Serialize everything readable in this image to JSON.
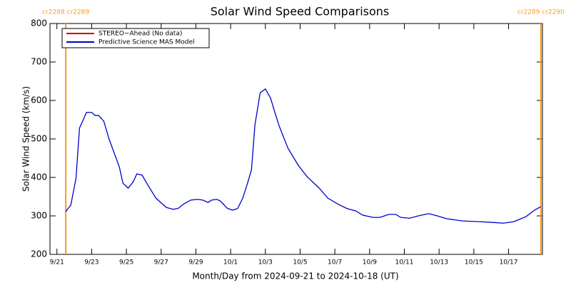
{
  "chart_data": {
    "type": "line",
    "title": "Solar Wind Speed Comparisons",
    "x_label": "Month/Day from 2024-09-21 to 2024-10-18 (UT)",
    "y_label": "Solar Wind Speed (km/s)",
    "xlim": [
      -0.4,
      27.95
    ],
    "xticks": [
      {
        "value": 0,
        "label": "9/21"
      },
      {
        "value": 2,
        "label": "9/23"
      },
      {
        "value": 4,
        "label": "9/25"
      },
      {
        "value": 6,
        "label": "9/27"
      },
      {
        "value": 8,
        "label": "9/29"
      },
      {
        "value": 10,
        "label": "10/1"
      },
      {
        "value": 12,
        "label": "10/3"
      },
      {
        "value": 14,
        "label": "10/5"
      },
      {
        "value": 16,
        "label": "10/7"
      },
      {
        "value": 18,
        "label": "10/9"
      },
      {
        "value": 20,
        "label": "10/11"
      },
      {
        "value": 22,
        "label": "10/13"
      },
      {
        "value": 24,
        "label": "10/15"
      },
      {
        "value": 26,
        "label": "10/17"
      }
    ],
    "ylim": [
      200,
      800
    ],
    "yticks": [
      200,
      300,
      400,
      500,
      600,
      700,
      800
    ],
    "legend": "upper left",
    "carrington": [
      {
        "label": "cr2288 cr2289",
        "x": 0.51,
        "color": "#ff9a1f"
      },
      {
        "label": "cr2289 cr2290",
        "x": 27.86,
        "color": "#ff9a1f"
      }
    ],
    "series": [
      {
        "name": "STEREO−Ahead (No data)",
        "color": "#cc0000",
        "x": [],
        "values": []
      },
      {
        "name": "Predictive Science MAS Model",
        "color": "#0000cc",
        "x": [
          0.5,
          0.8,
          1.1,
          1.3,
          1.7,
          2.0,
          2.2,
          2.4,
          2.7,
          3.0,
          3.6,
          3.8,
          4.1,
          4.4,
          4.6,
          4.9,
          5.2,
          5.7,
          6.3,
          6.7,
          7.0,
          7.3,
          7.7,
          8.1,
          8.4,
          8.7,
          8.9,
          9.2,
          9.4,
          9.8,
          10.1,
          10.4,
          10.7,
          11.0,
          11.2,
          11.4,
          11.7,
          12.0,
          12.3,
          12.6,
          12.8,
          13.3,
          13.9,
          14.4,
          15.1,
          15.6,
          16.2,
          16.7,
          17.2,
          17.6,
          18.2,
          18.6,
          19.1,
          19.5,
          19.8,
          20.3,
          20.8,
          21.4,
          21.9,
          22.4,
          23.3,
          24.3,
          25.1,
          25.7,
          26.3,
          27.0,
          27.5,
          27.85
        ],
        "values": [
          311,
          328,
          398,
          528,
          569,
          569,
          561,
          561,
          546,
          500,
          426,
          385,
          372,
          389,
          409,
          406,
          383,
          346,
          322,
          317,
          320,
          331,
          341,
          343,
          341,
          335,
          341,
          343,
          339,
          320,
          315,
          319,
          346,
          389,
          420,
          537,
          620,
          630,
          606,
          561,
          533,
          476,
          431,
          402,
          372,
          346,
          330,
          319,
          313,
          302,
          296,
          296,
          304,
          304,
          296,
          294,
          300,
          306,
          300,
          293,
          287,
          285,
          283,
          281,
          285,
          298,
          315,
          324
        ]
      }
    ]
  }
}
